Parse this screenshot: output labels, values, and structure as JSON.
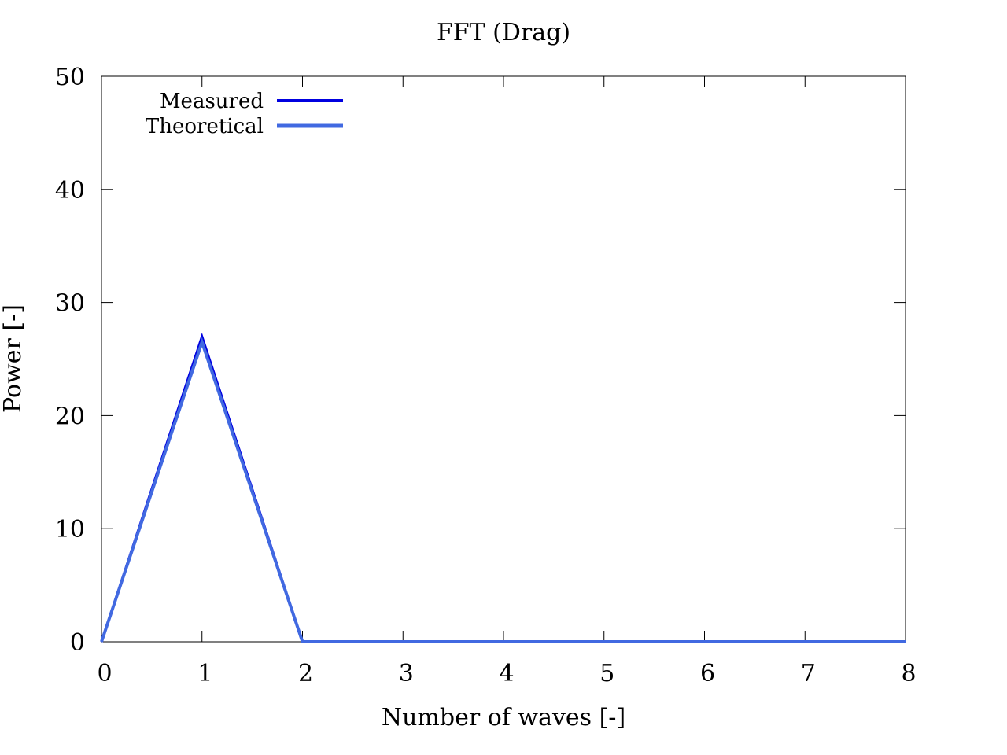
{
  "chart_data": {
    "type": "line",
    "title": "FFT (Drag)",
    "xlabel": "Number of waves [-]",
    "ylabel": "Power [-]",
    "xlim": [
      0,
      8
    ],
    "ylim": [
      0,
      50
    ],
    "x_ticks": [
      "0",
      "1",
      "2",
      "3",
      "4",
      "5",
      "6",
      "7",
      "8"
    ],
    "y_ticks": [
      "0",
      "10",
      "20",
      "30",
      "40",
      "50"
    ],
    "grid": false,
    "legend_position": "top-left",
    "series": [
      {
        "name": "Measured",
        "color": "#0000e0",
        "x": [
          0,
          1,
          2,
          3,
          4,
          5,
          6,
          7,
          8
        ],
        "y": [
          0,
          27,
          0,
          0,
          0,
          0,
          0,
          0,
          0
        ]
      },
      {
        "name": "Theoretical",
        "color": "#4169e1",
        "x": [
          0,
          1,
          2,
          3,
          4,
          5,
          6,
          7,
          8
        ],
        "y": [
          0,
          26.5,
          0,
          0,
          0,
          0,
          0,
          0,
          0
        ]
      }
    ]
  }
}
